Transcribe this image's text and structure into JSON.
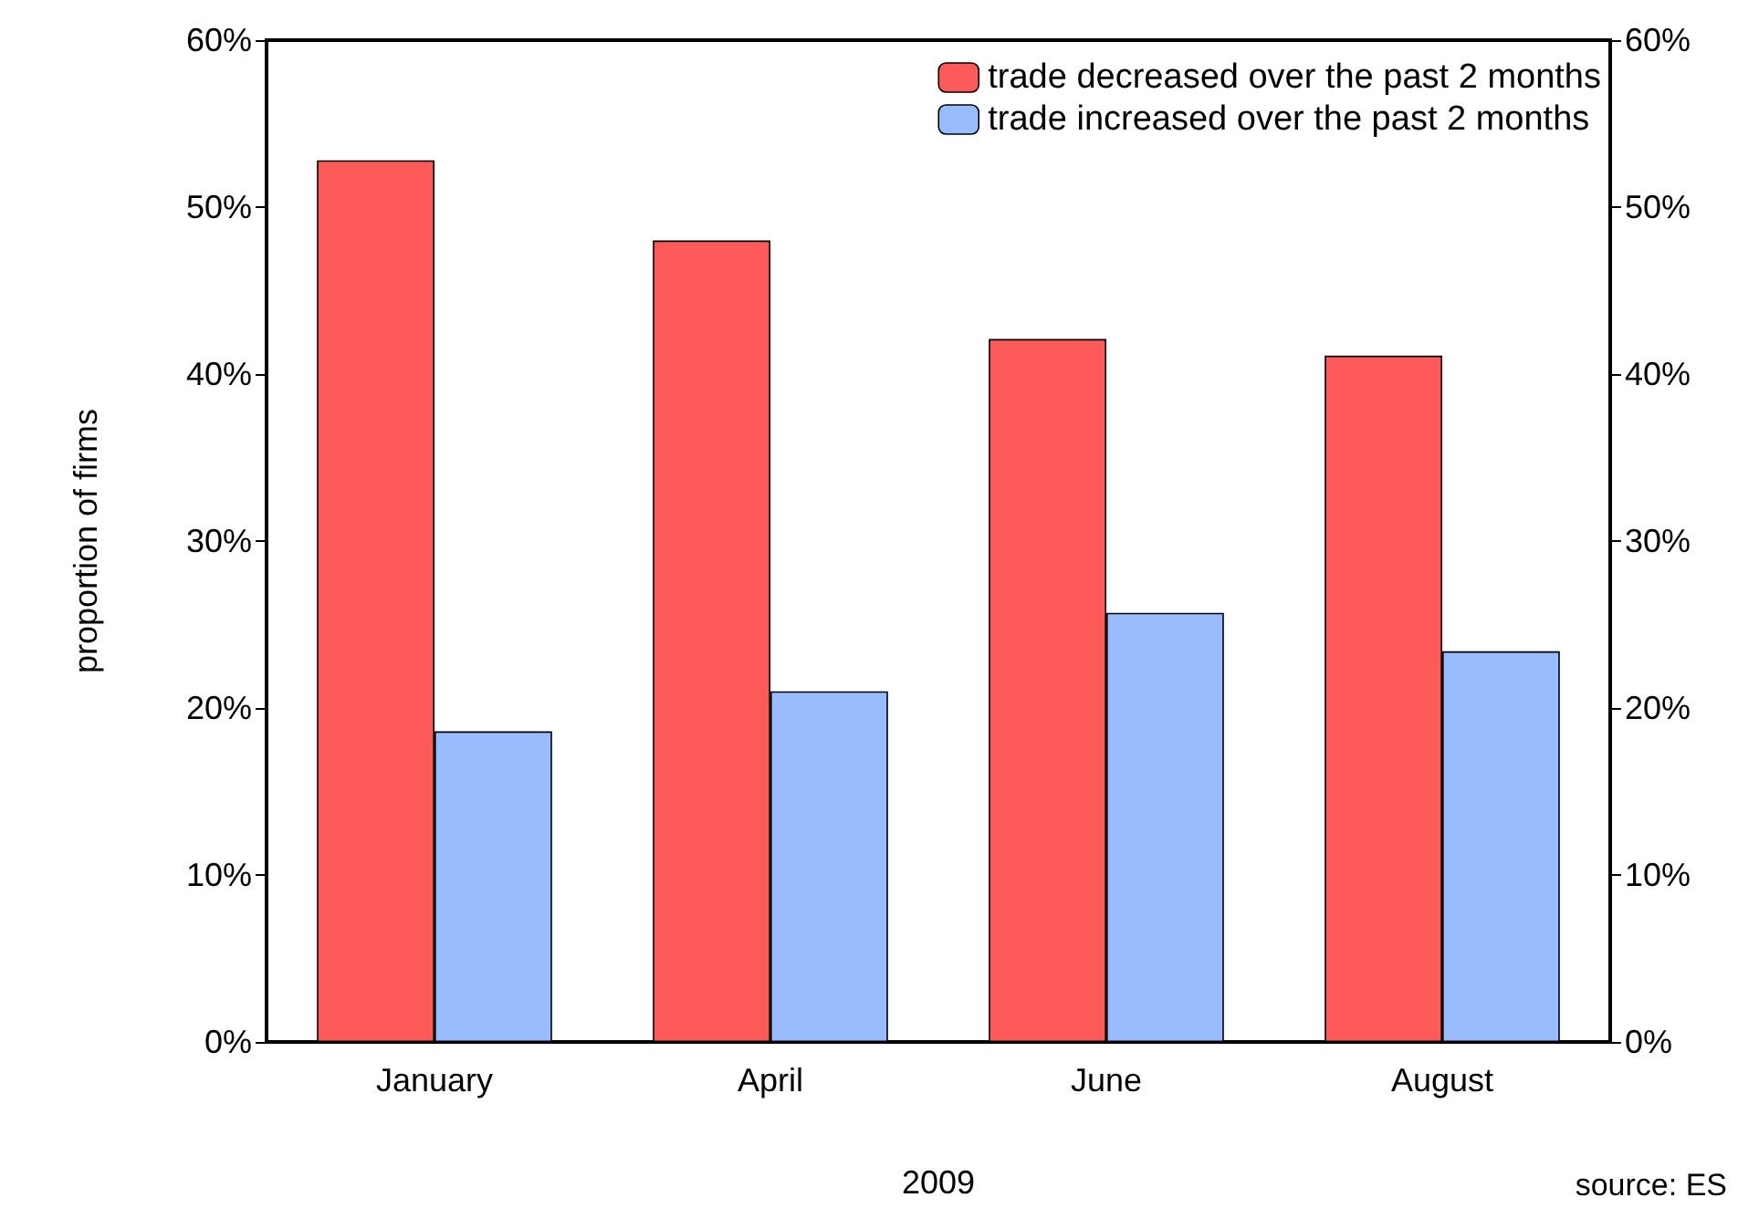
{
  "chart_data": {
    "type": "bar",
    "xlabel": "2009",
    "ylabel": "proportion of firms",
    "annotations": [
      "source: ES"
    ],
    "categories": [
      "January",
      "April",
      "June",
      "August"
    ],
    "series": [
      {
        "name": "trade decreased over the past 2 months",
        "color": "#ff5a5a",
        "values": [
          52.8,
          48.0,
          42.1,
          41.1
        ]
      },
      {
        "name": "trade increased over the past 2 months",
        "color": "#99bbff",
        "values": [
          18.6,
          21.0,
          25.7,
          23.4
        ]
      }
    ],
    "ylim": [
      0,
      60
    ],
    "yticks": [
      {
        "value": 0,
        "label": "0%"
      },
      {
        "value": 10,
        "label": "10%"
      },
      {
        "value": 20,
        "label": "20%"
      },
      {
        "value": 30,
        "label": "30%"
      },
      {
        "value": 40,
        "label": "40%"
      },
      {
        "value": 50,
        "label": "50%"
      },
      {
        "value": 60,
        "label": "60%"
      }
    ],
    "y2lim": [
      0,
      60
    ],
    "y2ticks": [
      {
        "value": 0,
        "label": "0%"
      },
      {
        "value": 10,
        "label": "10%"
      },
      {
        "value": 20,
        "label": "20%"
      },
      {
        "value": 30,
        "label": "30%"
      },
      {
        "value": 40,
        "label": "40%"
      },
      {
        "value": 50,
        "label": "50%"
      },
      {
        "value": 60,
        "label": "60%"
      }
    ],
    "grid": false,
    "legend": "top right"
  }
}
